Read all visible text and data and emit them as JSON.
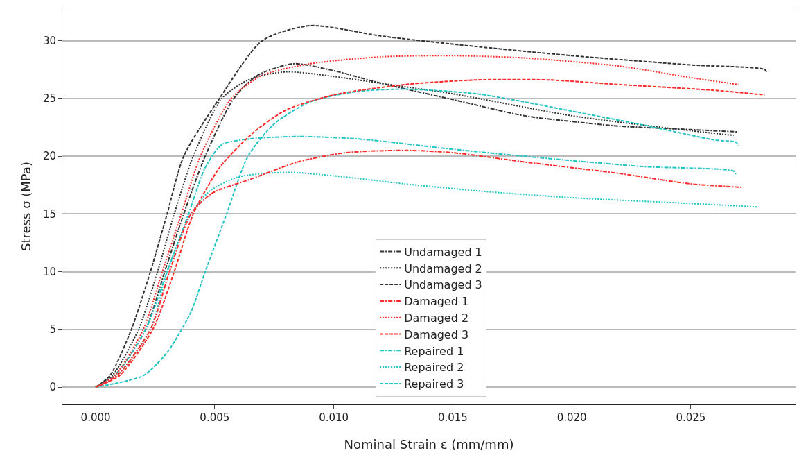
{
  "chart_data": {
    "type": "line",
    "xlabel": "Nominal Strain ε (mm/mm)",
    "ylabel": "Stress σ (MPa)",
    "xlim": [
      -0.0014,
      0.0294
    ],
    "ylim": [
      -1.5,
      32.8
    ],
    "xticks": [
      {
        "value": 0,
        "label": "0.000"
      },
      {
        "value": 0.005,
        "label": "0.005"
      },
      {
        "value": 0.01,
        "label": "0.010"
      },
      {
        "value": 0.015,
        "label": "0.015"
      },
      {
        "value": 0.02,
        "label": "0.020"
      },
      {
        "value": 0.025,
        "label": "0.025"
      }
    ],
    "yticks": [
      0,
      5,
      10,
      15,
      20,
      25,
      30
    ],
    "grid": "y",
    "legend": "bottom",
    "marker": "none",
    "series": [
      {
        "name": "Undamaged 1",
        "color": "#333333",
        "line_style": "dashdot",
        "x": [
          0,
          0.0008,
          0.0021,
          0.0029,
          0.0037,
          0.0046,
          0.0058,
          0.0068,
          0.0083,
          0.01,
          0.012,
          0.015,
          0.018,
          0.02,
          0.022,
          0.025,
          0.027
        ],
        "values": [
          0,
          1,
          5,
          10,
          15,
          20,
          25,
          27,
          28,
          27.4,
          26.3,
          24.9,
          23.5,
          23,
          22.6,
          22.3,
          22.1
        ]
      },
      {
        "name": "Undamaged 2",
        "color": "#333333",
        "line_style": "dotted",
        "x": [
          0,
          0.0007,
          0.0018,
          0.0026,
          0.0033,
          0.0041,
          0.0053,
          0.0065,
          0.008,
          0.01,
          0.012,
          0.015,
          0.02,
          0.025,
          0.0268
        ],
        "values": [
          0,
          1,
          5,
          10,
          15,
          20,
          25,
          26.7,
          27.3,
          26.9,
          26.3,
          25.4,
          23.5,
          22.2,
          21.8
        ]
      },
      {
        "name": "Undamaged 3",
        "color": "#333333",
        "line_style": "dashed",
        "x": [
          0,
          0.0006,
          0.0015,
          0.0023,
          0.003,
          0.0037,
          0.0052,
          0.007,
          0.009,
          0.012,
          0.015,
          0.02,
          0.025,
          0.0281,
          0.0282
        ],
        "values": [
          0,
          1,
          5,
          10,
          15,
          20,
          25,
          30,
          31.3,
          30.4,
          29.7,
          28.7,
          27.9,
          27.5,
          27.2
        ]
      },
      {
        "name": "Damaged 1",
        "color": "#ff2a2a",
        "line_style": "dashdot",
        "x": [
          0,
          0.0009,
          0.0023,
          0.0031,
          0.004,
          0.0049,
          0.0065,
          0.0085,
          0.0105,
          0.013,
          0.015,
          0.018,
          0.022,
          0.025,
          0.0272
        ],
        "values": [
          0,
          1,
          5,
          10,
          15,
          16.8,
          18,
          19.5,
          20.3,
          20.5,
          20.3,
          19.5,
          18.5,
          17.6,
          17.3
        ]
      },
      {
        "name": "Damaged 2",
        "color": "#ff2a2a",
        "line_style": "dotted",
        "x": [
          0,
          0.0008,
          0.002,
          0.0028,
          0.0036,
          0.0044,
          0.0057,
          0.007,
          0.009,
          0.012,
          0.015,
          0.018,
          0.022,
          0.025,
          0.027
        ],
        "values": [
          0,
          1,
          5,
          10,
          15,
          20,
          25,
          27,
          28,
          28.6,
          28.7,
          28.5,
          27.8,
          26.8,
          26.2
        ]
      },
      {
        "name": "Damaged 3",
        "color": "#ff2a2a",
        "line_style": "dashed",
        "x": [
          0,
          0.001,
          0.0024,
          0.0033,
          0.0041,
          0.0052,
          0.0066,
          0.008,
          0.01,
          0.013,
          0.016,
          0.019,
          0.022,
          0.026,
          0.0281
        ],
        "values": [
          0,
          1,
          5,
          10,
          15,
          19,
          22,
          24,
          25.3,
          26.2,
          26.6,
          26.6,
          26.2,
          25.7,
          25.3
        ]
      },
      {
        "name": "Repaired 1",
        "color": "#22c4c4",
        "line_style": "dashdot",
        "x": [
          0,
          0.0008,
          0.0021,
          0.003,
          0.0039,
          0.0046,
          0.0053,
          0.0065,
          0.0085,
          0.011,
          0.015,
          0.019,
          0.023,
          0.0268,
          0.0269
        ],
        "values": [
          0,
          1,
          5,
          10,
          15,
          19,
          21,
          21.5,
          21.7,
          21.5,
          20.6,
          19.8,
          19.1,
          18.7,
          18.4
        ]
      },
      {
        "name": "Repaired 2",
        "color": "#22c4c4",
        "line_style": "dotted",
        "x": [
          0,
          0.0009,
          0.0023,
          0.003,
          0.004,
          0.0048,
          0.006,
          0.008,
          0.01,
          0.013,
          0.016,
          0.02,
          0.025,
          0.0278
        ],
        "values": [
          0,
          1,
          5,
          10,
          15,
          17,
          18.2,
          18.6,
          18.3,
          17.6,
          17,
          16.4,
          15.9,
          15.6
        ]
      },
      {
        "name": "Repaired 3",
        "color": "#22c4c4",
        "line_style": "dashed",
        "x": [
          0,
          0.002,
          0.003,
          0.004,
          0.0046,
          0.0055,
          0.0064,
          0.0075,
          0.009,
          0.011,
          0.013,
          0.016,
          0.018,
          0.02,
          0.023,
          0.026,
          0.0269,
          0.027
        ],
        "values": [
          0,
          1,
          3,
          6.5,
          10,
          15,
          20,
          22.8,
          24.7,
          25.6,
          25.8,
          25.4,
          24.7,
          23.9,
          22.7,
          21.4,
          21.2,
          20.9
        ]
      }
    ]
  }
}
